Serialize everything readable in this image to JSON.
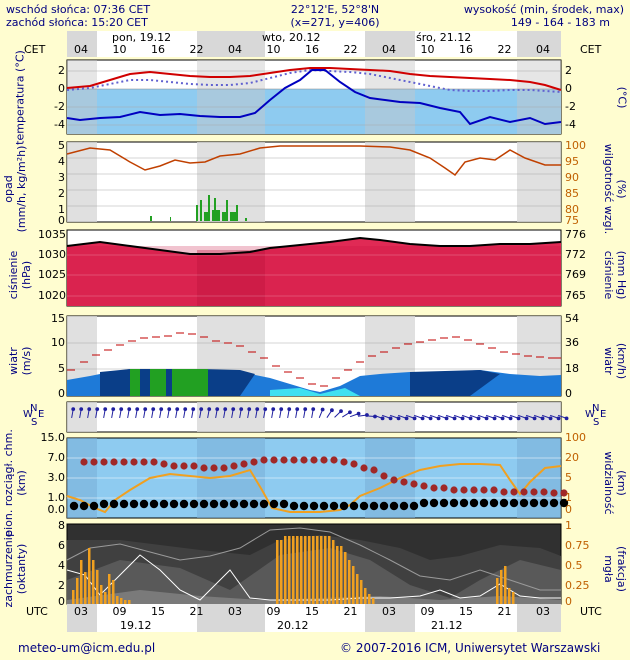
{
  "header": {
    "sunrise": "wschód słońca: 07:36 CET",
    "sunset": "zachód słońca: 15:20 CET",
    "coords": "22°12'E, 52°8'N",
    "grid": "(x=271, y=406)",
    "elev_label": "wysokość (min, środek, max)",
    "elev_values": "149 - 164 - 183 m"
  },
  "timeline": {
    "tz_left": "CET",
    "tz_right": "CET",
    "days_top": [
      "pon, 19.12",
      "wto, 20.12",
      "śro, 21.12"
    ],
    "hours_top": [
      "04",
      "10",
      "16",
      "22",
      "04",
      "10",
      "16",
      "22",
      "04",
      "10",
      "16",
      "22",
      "04"
    ],
    "utc_left": "UTC",
    "utc_right": "UTC",
    "hours_bottom": [
      "03",
      "09",
      "15",
      "21",
      "03",
      "09",
      "15",
      "21",
      "03",
      "09",
      "15",
      "21",
      "03"
    ],
    "days_bottom": [
      "19.12",
      "20.12",
      "21.12"
    ]
  },
  "panels": {
    "temp": {
      "left": "temperatura\n(°C)",
      "right": "(°C)",
      "ticks_l": [
        "2",
        "0",
        "-2",
        "-4"
      ],
      "ticks_r": [
        "2",
        "0",
        "-2",
        "-4"
      ]
    },
    "precip": {
      "left": "opad\n(mm/h, kg/m²h)",
      "right": "(%)\nwilgotność wzgl.",
      "ticks_l": [
        "5",
        "4",
        "3",
        "2",
        "1",
        "0"
      ],
      "ticks_r": [
        "100",
        "95",
        "90",
        "85",
        "80",
        "75"
      ]
    },
    "pressure": {
      "left": "ciśnienie\n(hPa)",
      "right": "(mm Hg)\nciśnienie",
      "ticks_l": [
        "1035",
        "1030",
        "1025",
        "1020"
      ],
      "ticks_r": [
        "776",
        "772",
        "769",
        "765"
      ]
    },
    "wind": {
      "left": "wiatr\n(m/s)",
      "right": "(km/h)\nwiatr",
      "ticks_l": [
        "15",
        "10",
        "5",
        "0"
      ],
      "ticks_r": [
        "54",
        "36",
        "18",
        "0"
      ]
    },
    "winddir": {
      "compass_n": "N",
      "compass_w": "W",
      "compass_e": "E",
      "compass_s": "S"
    },
    "visibility": {
      "left": "pion. rozciągł. chm.\n(km)",
      "right": "(km)\nwidzialność",
      "ticks_l": [
        "15.0",
        "7.0",
        "3.0",
        "1.0",
        "0.0"
      ],
      "ticks_r": [
        "100",
        "20",
        "5",
        "1",
        "0"
      ]
    },
    "clouds": {
      "left": "zachmurzenie\n(oktanty)",
      "right": "(frakcja)\nmgła",
      "ticks_l": [
        "8",
        "6",
        "4",
        "2",
        "0"
      ],
      "ticks_r": [
        "1",
        "0.75",
        "0.5",
        "0.25",
        "0"
      ]
    }
  },
  "footer": {
    "email": "meteo-um@icm.edu.pl",
    "copyright": "© 2007-2016 ICM, Uniwersytet Warszawski"
  },
  "colors": {
    "bg": "#fffdd0",
    "panel_blue": "#8ecbf0",
    "panel_gray": "#d8d8d8",
    "temp_red": "#d00000",
    "temp_blue": "#0000c0",
    "humidity": "#c04000",
    "precip": "#22a022",
    "pressure": "#e8204a",
    "cloud_bars": "#f0a020",
    "label_text": "#000080"
  }
}
